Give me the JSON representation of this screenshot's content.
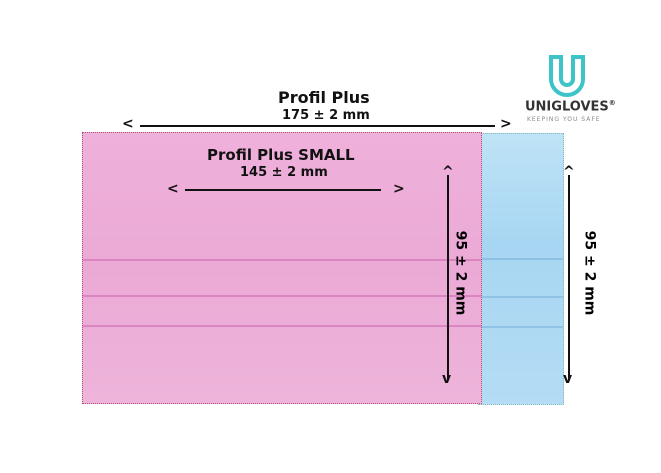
{
  "logo": {
    "brand": "UNIGLOVES",
    "trademark": "®",
    "tagline": "KEEPING YOU SAFE",
    "color": "#3cc4c8"
  },
  "profil_plus": {
    "title": "Profil Plus",
    "width": "175 ± 2 mm",
    "height": "95 ± 2 mm",
    "color": "#a7d6f2"
  },
  "profil_plus_small": {
    "title": "Profil Plus SMALL",
    "width": "145 ± 2 mm",
    "height": "95 ± 2 mm",
    "color": "#eeb0da"
  }
}
